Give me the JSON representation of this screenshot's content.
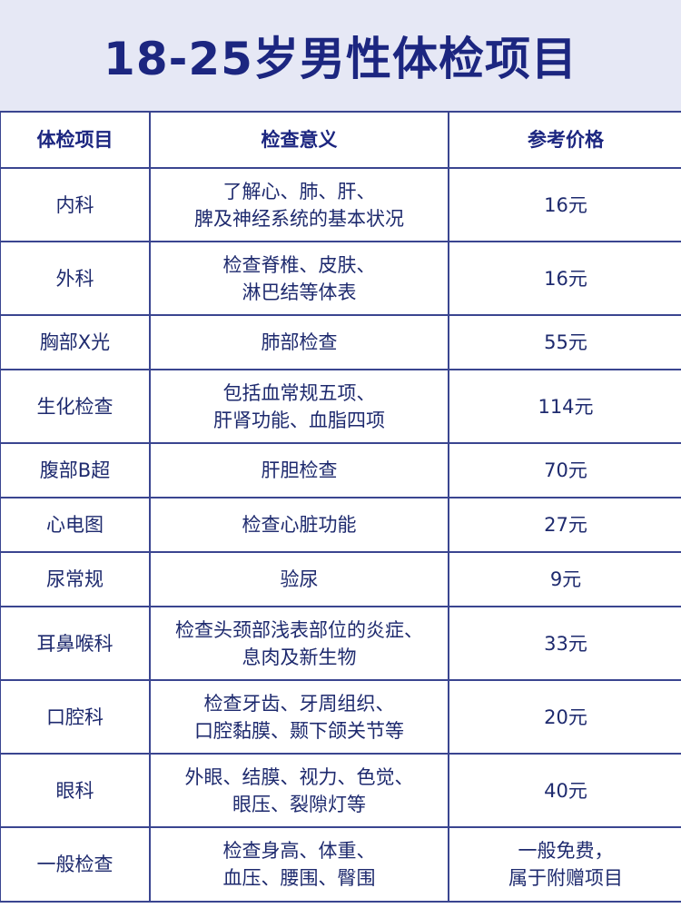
{
  "title": "18-25岁男性体检项目",
  "headers": [
    "体检项目",
    "检查意义",
    "参考价格"
  ],
  "rows": [
    {
      "item": "内科",
      "meaning": [
        "了解心、肺、肝、",
        "脾及神经系统的基本状况"
      ],
      "price": [
        "16元"
      ]
    },
    {
      "item": "外科",
      "meaning": [
        "检查脊椎、皮肤、",
        "淋巴结等体表"
      ],
      "price": [
        "16元"
      ]
    },
    {
      "item": "胸部X光",
      "meaning": [
        "肺部检查"
      ],
      "price": [
        "55元"
      ]
    },
    {
      "item": "生化检查",
      "meaning": [
        "包括血常规五项、",
        "肝肾功能、血脂四项"
      ],
      "price": [
        "114元"
      ]
    },
    {
      "item": "腹部B超",
      "meaning": [
        "肝胆检查"
      ],
      "price": [
        "70元"
      ]
    },
    {
      "item": "心电图",
      "meaning": [
        "检查心脏功能"
      ],
      "price": [
        "27元"
      ]
    },
    {
      "item": "尿常规",
      "meaning": [
        "验尿"
      ],
      "price": [
        "9元"
      ]
    },
    {
      "item": "耳鼻喉科",
      "meaning": [
        "检查头颈部浅表部位的炎症、",
        "息肉及新生物"
      ],
      "price": [
        "33元"
      ]
    },
    {
      "item": "口腔科",
      "meaning": [
        "检查牙齿、牙周组织、",
        "口腔黏膜、颞下颌关节等"
      ],
      "price": [
        "20元"
      ]
    },
    {
      "item": "眼科",
      "meaning": [
        "外眼、结膜、视力、色觉、",
        "眼压、裂隙灯等"
      ],
      "price": [
        "40元"
      ]
    },
    {
      "item": "一般检查",
      "meaning": [
        "检查身高、体重、",
        "血压、腰围、臀围"
      ],
      "price": [
        "一般免费，",
        "属于附赠项目"
      ]
    }
  ]
}
